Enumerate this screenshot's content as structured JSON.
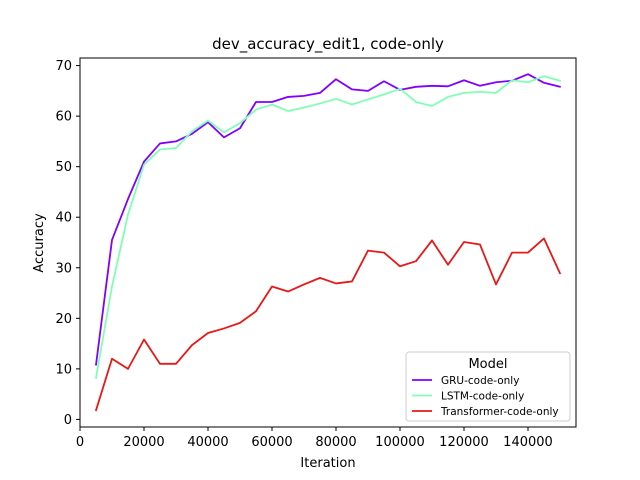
{
  "chart_data": {
    "type": "line",
    "title": "dev_accuracy_edit1, code-only",
    "xlabel": "Iteration",
    "ylabel": "Accuracy",
    "xlim": [
      0,
      155000
    ],
    "ylim": [
      -1.5,
      71.5
    ],
    "xticks": [
      0,
      20000,
      40000,
      60000,
      80000,
      100000,
      120000,
      140000
    ],
    "xtick_labels": [
      "0",
      "20000",
      "40000",
      "60000",
      "80000",
      "100000",
      "120000",
      "140000"
    ],
    "yticks": [
      0,
      10,
      20,
      30,
      40,
      50,
      60,
      70
    ],
    "ytick_labels": [
      "0",
      "10",
      "20",
      "30",
      "40",
      "50",
      "60",
      "70"
    ],
    "grid": false,
    "legend": {
      "title": "Model",
      "placement": "lower-right"
    },
    "x": [
      5000,
      10000,
      15000,
      20000,
      25000,
      30000,
      35000,
      40000,
      45000,
      50000,
      55000,
      60000,
      65000,
      70000,
      75000,
      80000,
      85000,
      90000,
      95000,
      100000,
      105000,
      110000,
      115000,
      120000,
      125000,
      130000,
      135000,
      140000,
      145000,
      150000
    ],
    "series": [
      {
        "name": "GRU-code-only",
        "color": "#8000ff",
        "values": [
          10.8,
          35.5,
          43.6,
          51.0,
          54.6,
          55.0,
          56.5,
          58.8,
          55.8,
          57.6,
          62.8,
          62.8,
          63.8,
          64.0,
          64.6,
          67.3,
          65.3,
          65.0,
          66.9,
          65.2,
          65.8,
          66.0,
          65.9,
          67.1,
          66.0,
          66.7,
          67.0,
          68.3,
          66.6,
          65.8
        ]
      },
      {
        "name": "LSTM-code-only",
        "color": "#80ffb4",
        "values": [
          8.2,
          26.3,
          40.5,
          50.4,
          53.4,
          53.7,
          57.0,
          59.1,
          56.8,
          58.6,
          61.3,
          62.3,
          61.0,
          61.7,
          62.5,
          63.4,
          62.3,
          63.3,
          64.3,
          65.4,
          62.8,
          62.0,
          63.8,
          64.6,
          64.8,
          64.6,
          67.1,
          66.7,
          67.9,
          67.0
        ]
      },
      {
        "name": "Transformer-code-only",
        "color": "#e81818",
        "values": [
          1.8,
          12.0,
          10.0,
          15.8,
          11.0,
          11.0,
          14.7,
          17.1,
          18.0,
          19.1,
          21.4,
          26.3,
          25.3,
          26.7,
          28.0,
          26.9,
          27.3,
          33.4,
          33.0,
          30.3,
          31.3,
          35.4,
          30.6,
          35.1,
          34.6,
          26.7,
          33.0,
          33.0,
          35.8,
          28.9
        ]
      }
    ]
  }
}
